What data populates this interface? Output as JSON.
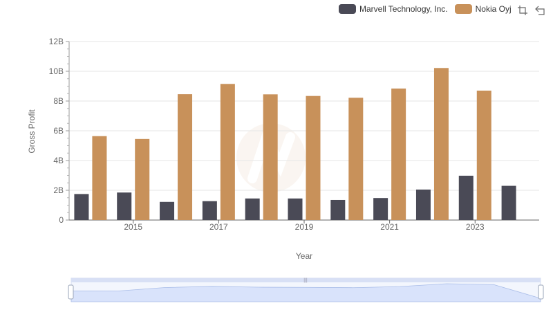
{
  "legend": {
    "items": [
      {
        "label": "Marvell Technology, Inc.",
        "color": "#4a4a56"
      },
      {
        "label": "Nokia Oyj",
        "color": "#c8915a"
      }
    ]
  },
  "toolbar": {
    "icons": [
      "zoom-icon",
      "restore-icon"
    ]
  },
  "chart_data": {
    "type": "bar",
    "xlabel": "Year",
    "ylabel": "Gross Profit",
    "ylim": [
      0,
      12
    ],
    "y_tick_labels": [
      "0",
      "2B",
      "4B",
      "6B",
      "8B",
      "10B",
      "12B"
    ],
    "categories": [
      "2014",
      "2015",
      "2016",
      "2017",
      "2018",
      "2019",
      "2020",
      "2021",
      "2022",
      "2023",
      "2024"
    ],
    "x_tick_labels": [
      "2015",
      "2017",
      "2019",
      "2021",
      "2023"
    ],
    "series": [
      {
        "name": "Marvell Technology, Inc.",
        "color": "#4a4a56",
        "values": [
          1.75,
          1.85,
          1.22,
          1.27,
          1.45,
          1.45,
          1.35,
          1.48,
          2.05,
          2.98,
          2.3
        ]
      },
      {
        "name": "Nokia Oyj",
        "color": "#c8915a",
        "values": [
          5.64,
          5.45,
          8.46,
          9.15,
          8.45,
          8.34,
          8.22,
          8.84,
          10.22,
          8.7,
          null
        ]
      }
    ],
    "grid": true,
    "legend_position": "top-right",
    "zoom_slider": true
  }
}
